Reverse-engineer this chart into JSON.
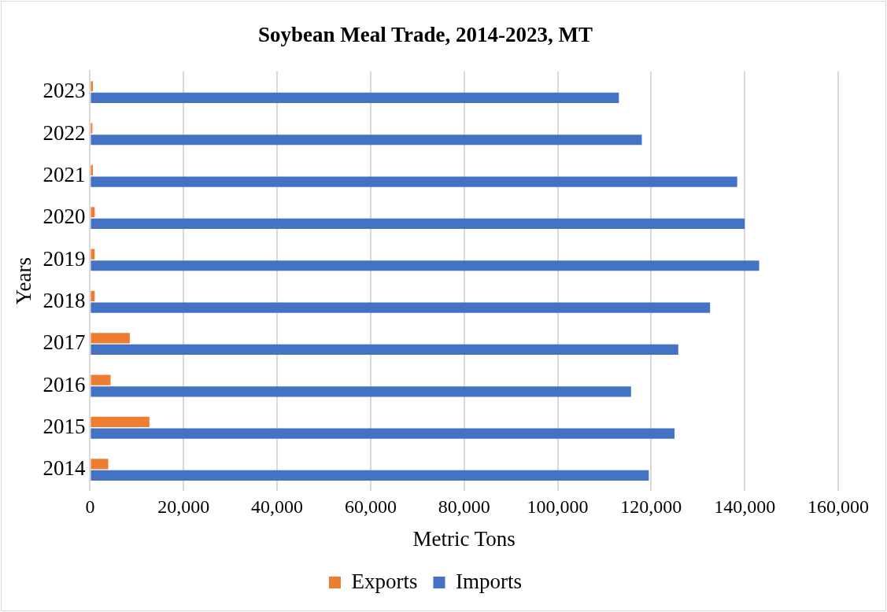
{
  "chart_data": {
    "type": "bar",
    "orientation": "horizontal",
    "title": "Soybean Meal Trade, 2014-2023, MT",
    "xlabel": "Metric Tons",
    "ylabel": "Years",
    "categories": [
      "2023",
      "2022",
      "2021",
      "2020",
      "2019",
      "2018",
      "2017",
      "2016",
      "2015",
      "2014"
    ],
    "series": [
      {
        "name": "Exports",
        "color": "#ed7d31",
        "values": [
          600,
          500,
          600,
          1000,
          1000,
          1000,
          8500,
          4400,
          12700,
          3900
        ]
      },
      {
        "name": "Imports",
        "color": "#4472c4",
        "values": [
          113100,
          118000,
          138400,
          140000,
          143100,
          132600,
          125800,
          115700,
          125000,
          119500
        ]
      }
    ],
    "xlim": [
      0,
      160000
    ],
    "xticks": [
      0,
      {
        "value": 20000,
        "label": "20,000"
      },
      {
        "value": 40000,
        "label": "40,000"
      },
      {
        "value": 60000,
        "label": "60,000"
      },
      {
        "value": 80000,
        "label": "80,000"
      },
      {
        "value": 100000,
        "label": "100,000"
      },
      {
        "value": 120000,
        "label": "120,000"
      },
      {
        "value": 140000,
        "label": "140,000"
      },
      {
        "value": 160000,
        "label": "160,000"
      }
    ],
    "grid": "x",
    "legend": "bottom"
  }
}
